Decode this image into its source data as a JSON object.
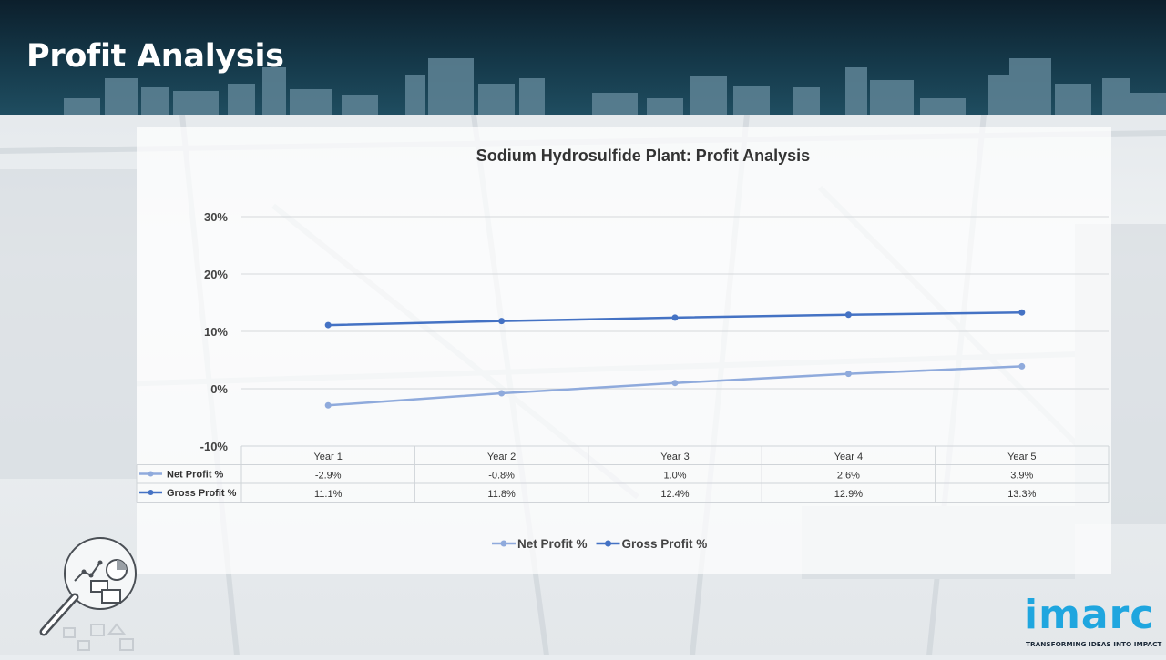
{
  "header": {
    "title": "Profit Analysis"
  },
  "chart_data": {
    "type": "line",
    "title": "Sodium Hydrosulfide Plant: Profit Analysis",
    "categories": [
      "Year 1",
      "Year 2",
      "Year 3",
      "Year 4",
      "Year 5"
    ],
    "series": [
      {
        "name": "Net Profit %",
        "values": [
          -2.9,
          -0.8,
          1.0,
          2.6,
          3.9
        ],
        "labels": [
          "-2.9%",
          "-0.8%",
          "1.0%",
          "2.6%",
          "3.9%"
        ],
        "color": "#8faadc"
      },
      {
        "name": "Gross Profit %",
        "values": [
          11.1,
          11.8,
          12.4,
          12.9,
          13.3
        ],
        "labels": [
          "11.1%",
          "11.8%",
          "12.4%",
          "12.9%",
          "13.3%"
        ],
        "color": "#4472c4"
      }
    ],
    "ylim": [
      -10,
      30
    ],
    "yticks": [
      -10,
      0,
      10,
      20,
      30
    ],
    "ytick_labels": [
      "-10%",
      "0%",
      "10%",
      "20%",
      "30%"
    ],
    "grid": true,
    "data_table": true,
    "legend_position": "bottom"
  },
  "logo": {
    "name": "imarc",
    "tagline": "TRANSFORMING IDEAS INTO IMPACT"
  },
  "icons": {
    "analysis": "magnifier-analytics-icon"
  }
}
